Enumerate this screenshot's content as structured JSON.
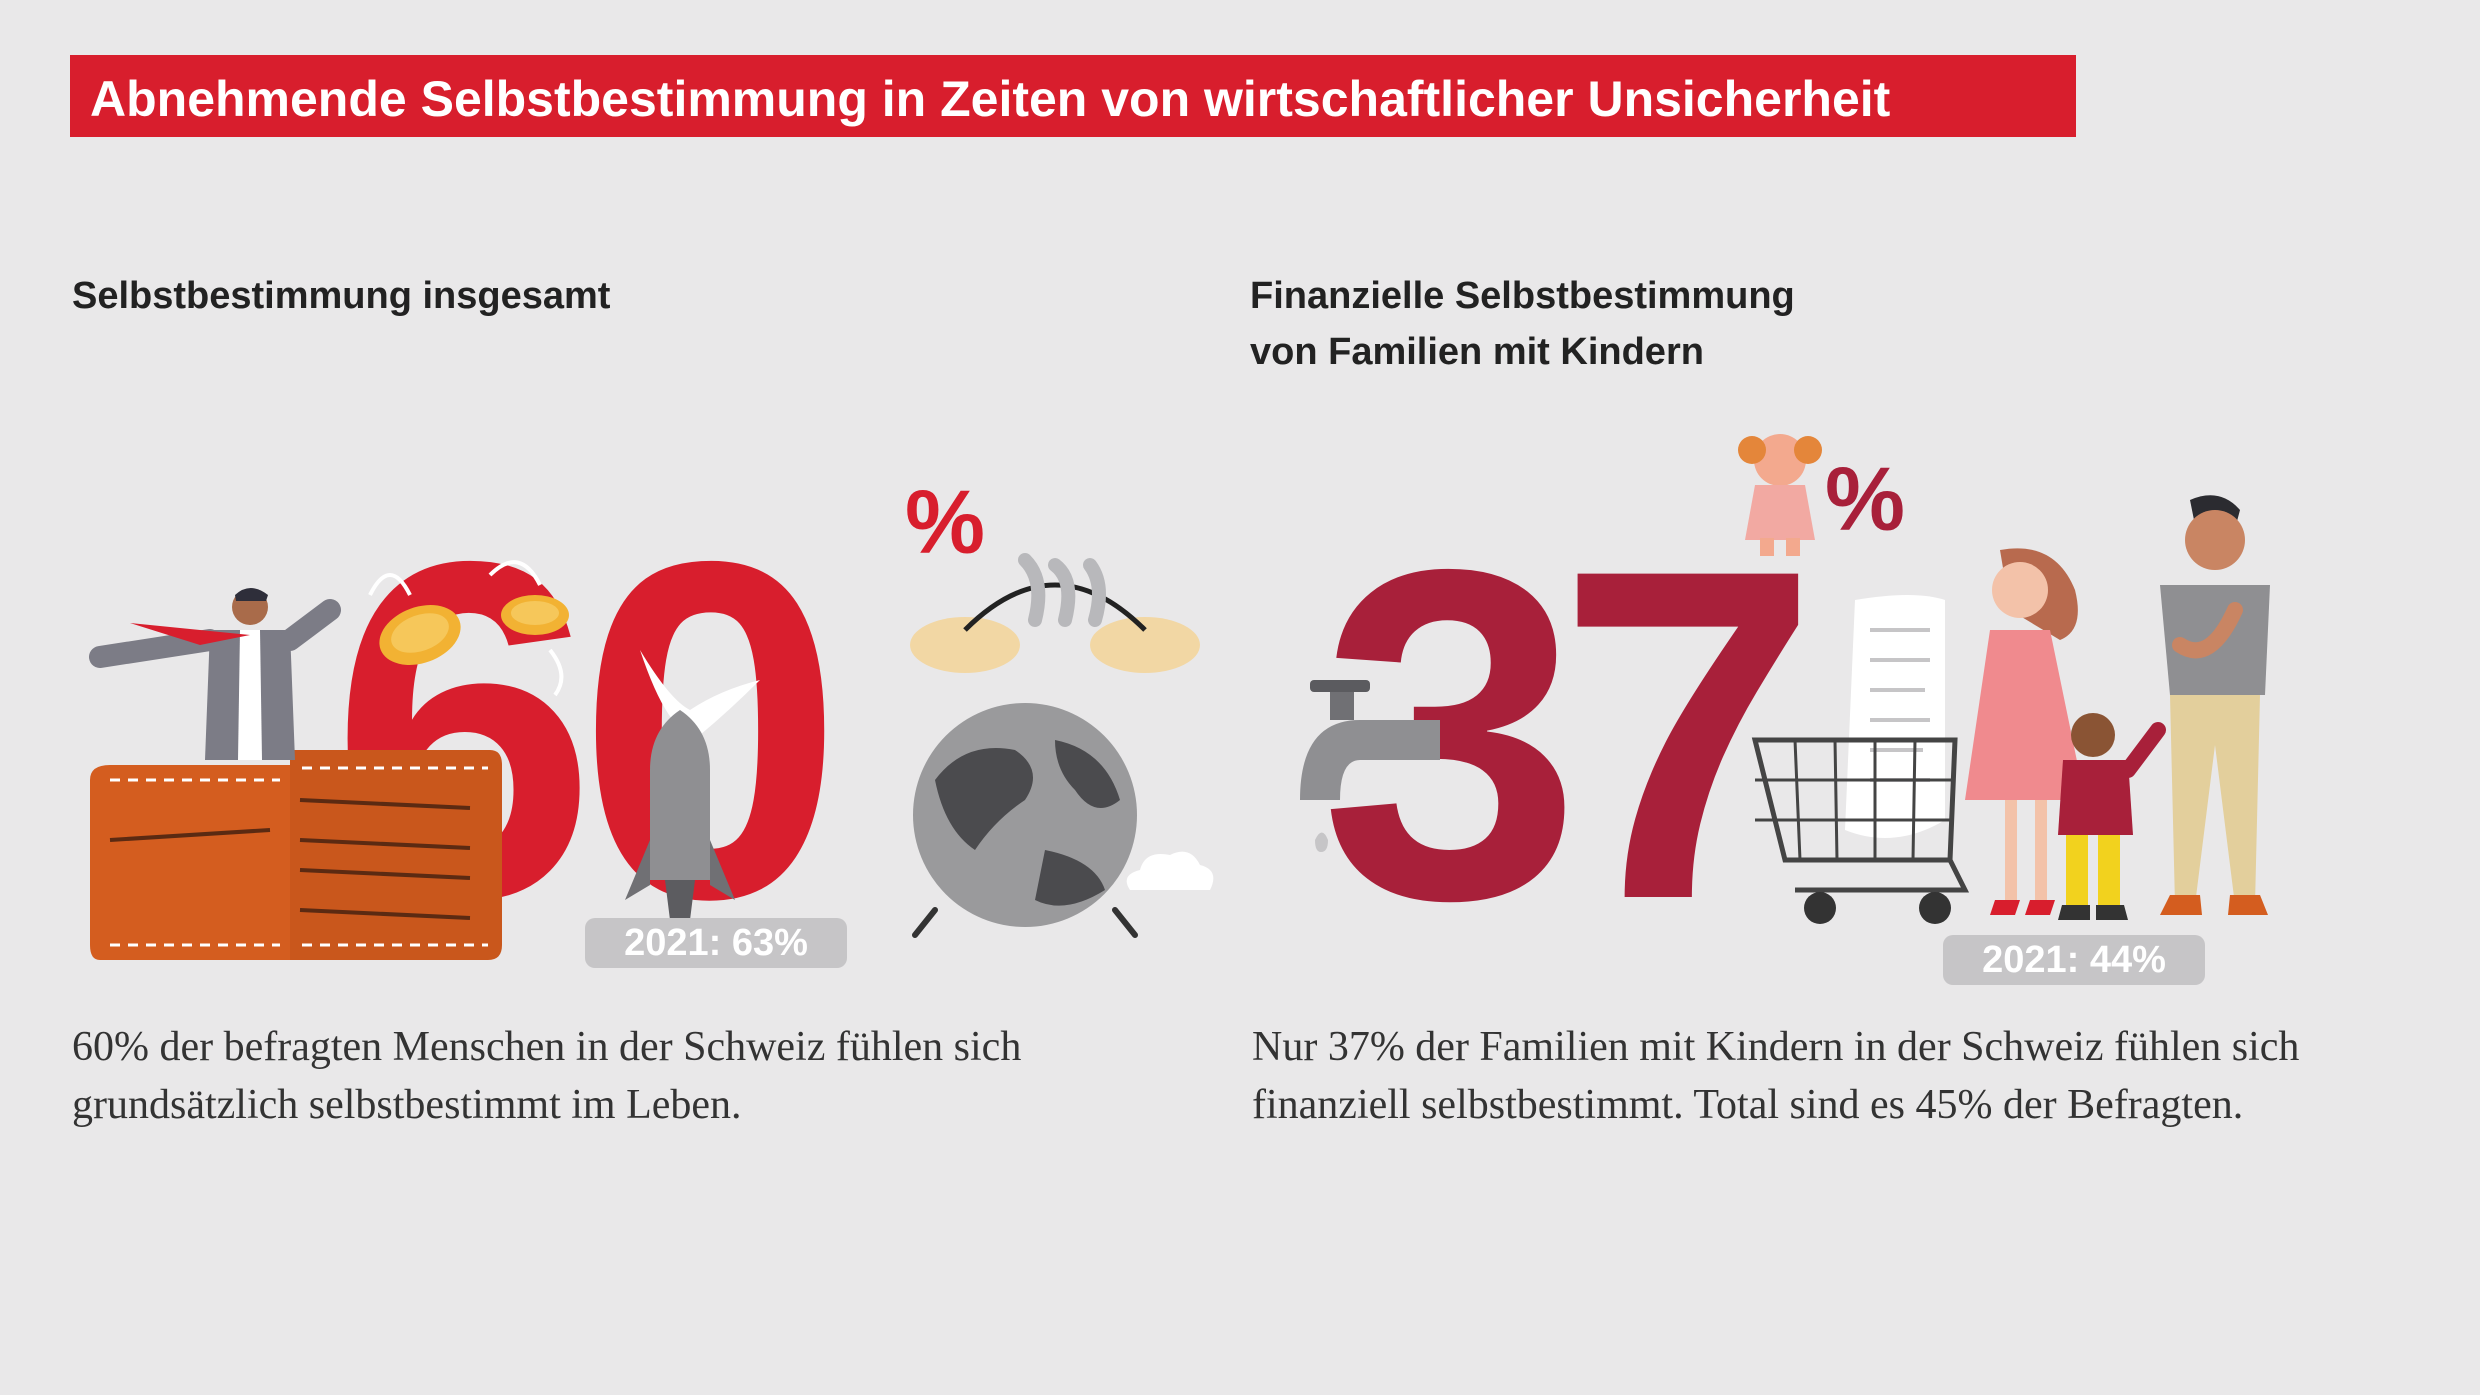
{
  "title": "Abnehmende Selbstbestimmung in Zeiten von wirtschaftlicher Unsicherheit",
  "colors": {
    "title_band": "#d81e2d",
    "left_accent": "#d81e2d",
    "right_accent": "#a8203a",
    "background": "#e9e8e9",
    "pill": "#c6c5c7"
  },
  "left": {
    "heading": "Selbstbestimmung insgesamt",
    "big_number": "60",
    "percent_sign": "%",
    "previous": "2021: 63%",
    "text": "60% der befragten Menschen in der Schweiz fühlen sich grundsätzlich selbstbestimmt im Leben.",
    "illustrations": [
      "wallet-icon",
      "businessman-icon",
      "coins-icon",
      "dove-icon",
      "missile-icon",
      "alarm-clock-icon",
      "globe-icon",
      "cloud-icon"
    ]
  },
  "right": {
    "heading_line1": "Finanzielle Selbstbestimmung",
    "heading_line2": "von Familien mit Kindern",
    "big_number": "37",
    "percent_sign": "%",
    "previous": "2021: 44%",
    "text": "Nur 37% der Familien mit Kindern in der Schweiz fühlen sich finanziell selbstbestimmt. Total sind es 45% der Befragten.",
    "illustrations": [
      "faucet-icon",
      "crying-child-icon",
      "shopping-cart-icon",
      "receipt-icon",
      "woman-icon",
      "child-icon",
      "man-icon"
    ]
  }
}
